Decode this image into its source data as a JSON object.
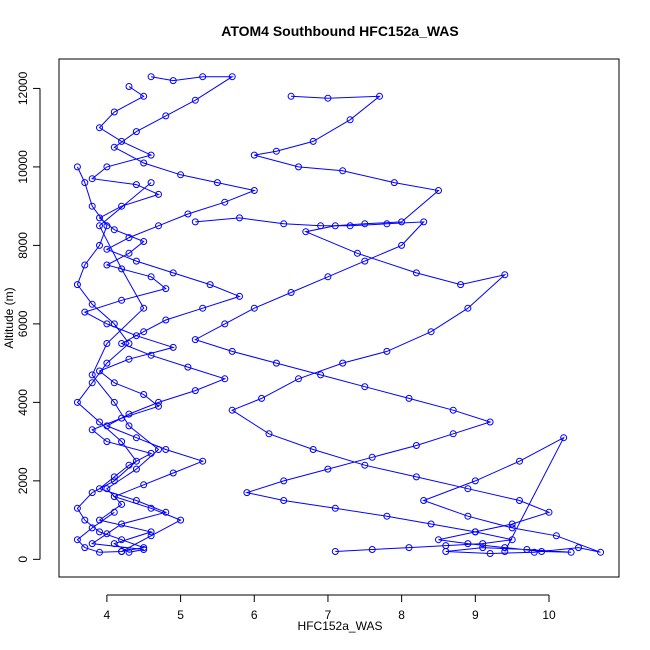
{
  "chart_data": {
    "type": "scatter",
    "title": "ATOM4 Southbound HFC152a_WAS",
    "xlabel": "HFC152a_WAS",
    "ylabel": "Altitude (m)",
    "xlim": [
      3.35,
      10.95
    ],
    "ylim": [
      -450,
      12750
    ],
    "xticks": [
      4,
      5,
      6,
      7,
      8,
      9,
      10
    ],
    "yticks": [
      0,
      2000,
      4000,
      6000,
      8000,
      10000,
      12000
    ],
    "grid": false,
    "legend": "none",
    "style": "points-connected-by-lines",
    "series_color": "#0000ff",
    "series": [
      {
        "x": [
          4.3,
          4.5,
          4.1,
          3.9,
          4.2,
          4.6,
          4.0,
          3.8,
          4.4,
          4.7,
          4.2,
          3.9,
          4.1,
          4.5,
          4.3,
          4.0,
          4.6,
          4.8,
          4.2,
          3.7,
          4.0,
          4.4,
          4.9,
          4.3,
          3.9,
          4.1,
          4.5,
          4.7,
          4.2,
          3.8,
          4.0,
          4.6,
          4.3,
          4.1,
          3.9,
          4.4,
          4.8,
          4.2,
          4.0,
          3.8,
          4.5,
          4.3,
          4.1,
          4.6,
          3.9,
          4.2,
          4.0,
          4.4,
          4.7,
          4.3,
          4.1,
          3.8,
          4.0,
          4.5,
          4.2,
          3.9,
          4.6
        ],
        "y": [
          12050,
          11800,
          11400,
          11000,
          10650,
          10300,
          10000,
          9700,
          9550,
          9300,
          9000,
          8700,
          8400,
          8100,
          7800,
          7500,
          7200,
          6900,
          6600,
          6300,
          6000,
          5700,
          5400,
          5100,
          4800,
          4500,
          4200,
          3900,
          3600,
          3300,
          3000,
          2700,
          2400,
          2100,
          1800,
          1500,
          1200,
          900,
          650,
          400,
          250,
          180,
          400,
          700,
          1000,
          1400,
          1800,
          2300,
          2800,
          3400,
          4000,
          4700,
          5500,
          6400,
          7400,
          8500,
          9600
        ]
      },
      {
        "x": [
          4.6,
          4.9,
          5.3,
          5.7,
          5.2,
          4.8,
          4.4,
          4.1,
          4.5,
          5.0,
          5.5,
          6.0,
          5.6,
          5.1,
          4.7,
          4.3,
          4.0,
          4.4,
          4.9,
          5.4,
          5.8,
          5.3,
          4.8,
          4.5,
          4.2,
          4.6,
          5.1,
          5.6,
          5.2,
          4.7,
          4.3,
          4.0,
          4.4,
          4.8,
          5.3,
          4.9,
          4.5,
          4.1,
          4.6,
          5.0,
          4.6,
          4.2
        ],
        "y": [
          12300,
          12200,
          12300,
          12300,
          11700,
          11300,
          10900,
          10500,
          10100,
          9800,
          9600,
          9400,
          9100,
          8800,
          8500,
          8200,
          7900,
          7600,
          7300,
          7000,
          6700,
          6400,
          6100,
          5800,
          5500,
          5200,
          4900,
          4600,
          4300,
          4000,
          3700,
          3400,
          3100,
          2800,
          2500,
          2200,
          1900,
          1600,
          1300,
          1000,
          600,
          200
        ]
      },
      {
        "x": [
          6.5,
          7.0,
          7.7,
          7.3,
          6.8,
          6.3,
          6.0,
          6.6,
          7.2,
          7.9,
          8.5,
          8.0,
          7.5,
          7.1,
          6.7,
          7.4,
          8.2,
          8.8,
          9.4,
          8.9,
          8.4,
          7.8,
          7.2,
          6.6,
          6.1,
          5.7,
          6.2,
          6.8,
          7.5,
          8.2,
          8.9,
          9.6,
          10.0,
          9.5,
          9.0,
          8.5,
          8.9,
          9.4,
          9.9,
          10.3,
          9.7,
          9.1,
          8.6,
          9.2,
          9.8,
          10.4,
          10.7,
          10.1,
          9.5,
          8.9,
          8.3,
          9.0,
          9.6,
          10.2,
          9.4
        ],
        "y": [
          11800,
          11750,
          11800,
          11200,
          10650,
          10400,
          10300,
          10000,
          9900,
          9600,
          9400,
          8600,
          8550,
          8500,
          8350,
          7800,
          7300,
          7000,
          7250,
          6400,
          5800,
          5300,
          5000,
          4600,
          4100,
          3800,
          3200,
          2800,
          2400,
          2100,
          1800,
          1500,
          1200,
          900,
          700,
          500,
          400,
          300,
          200,
          180,
          250,
          300,
          200,
          150,
          180,
          300,
          180,
          600,
          800,
          1100,
          1500,
          2000,
          2500,
          3100,
          200
        ]
      },
      {
        "x": [
          3.6,
          3.7,
          3.8,
          4.0,
          3.9,
          3.7,
          3.6,
          3.8,
          4.1,
          4.3,
          4.0,
          3.8,
          3.6,
          3.9,
          4.2,
          4.4,
          4.1,
          3.8,
          3.6,
          3.7,
          3.9,
          4.2,
          4.5,
          4.2,
          3.9,
          3.7,
          3.6,
          3.8,
          4.1
        ],
        "y": [
          10000,
          9600,
          9000,
          8500,
          8000,
          7500,
          7000,
          6500,
          6000,
          5500,
          5000,
          4500,
          4000,
          3500,
          3000,
          2500,
          2000,
          1700,
          1300,
          1000,
          700,
          500,
          300,
          200,
          180,
          300,
          500,
          800,
          1200
        ]
      },
      {
        "x": [
          5.2,
          5.8,
          6.4,
          6.9,
          7.3,
          7.8,
          8.3,
          8.0,
          7.5,
          7.0,
          6.5,
          6.0,
          5.6,
          5.2,
          5.7,
          6.3,
          6.9,
          7.5,
          8.1,
          8.7,
          9.2,
          8.7,
          8.2,
          7.6,
          7.0,
          6.4,
          5.9,
          6.4,
          7.1,
          7.8,
          8.4,
          9.0,
          9.5,
          9.1,
          8.6,
          8.1,
          7.6,
          7.1
        ],
        "y": [
          8600,
          8700,
          8550,
          8500,
          8500,
          8550,
          8600,
          8000,
          7600,
          7200,
          6800,
          6400,
          6000,
          5600,
          5300,
          5000,
          4700,
          4400,
          4100,
          3800,
          3500,
          3200,
          2900,
          2600,
          2300,
          2000,
          1700,
          1500,
          1300,
          1100,
          900,
          700,
          500,
          400,
          350,
          300,
          250,
          200
        ]
      }
    ]
  }
}
